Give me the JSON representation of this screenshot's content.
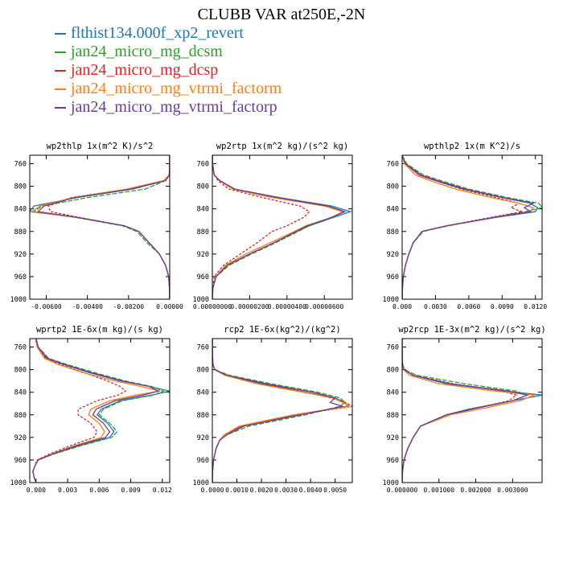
{
  "title": "CLUBB VAR at250E,-2N",
  "legend": [
    {
      "name": "flthist134.000f_xp2_revert",
      "color": "#1f77b4"
    },
    {
      "name": "jan24_micro_mg_dcsm",
      "color": "#2ca02c"
    },
    {
      "name": "jan24_micro_mg_dcsp",
      "color": "#d62728"
    },
    {
      "name": "jan24_micro_mg_vtrmi_factorm",
      "color": "#ff7f0e"
    },
    {
      "name": "jan24_micro_mg_vtrmi_factorp",
      "color": "#6a3d9a"
    }
  ],
  "chart_data": [
    {
      "type": "line",
      "title": "wp2thlp  1x(m^2 K)/s^2",
      "xlim": [
        -0.0068,
        0.0
      ],
      "ylim": [
        1000,
        745
      ],
      "xticks": [
        -0.006,
        -0.004,
        -0.002,
        0.0
      ],
      "xtick_labels": [
        "-0.00600",
        "-0.00400",
        "-0.00200",
        "0.00000"
      ],
      "yticks": [
        760,
        800,
        840,
        880,
        920,
        960,
        1000
      ],
      "ytick_labels": [
        "760",
        "800",
        "840",
        "880",
        "920",
        "960",
        "1000"
      ],
      "y": [
        745,
        760,
        780,
        790,
        805,
        820,
        835,
        845,
        855,
        870,
        880,
        900,
        920,
        940,
        960,
        980,
        1000
      ],
      "series": [
        {
          "name": "flthist134.000f_xp2_revert",
          "values": [
            0,
            0,
            -2e-05,
            -0.0002,
            -0.0018,
            -0.0045,
            -0.0066,
            -0.0068,
            -0.0045,
            -0.0022,
            -0.0015,
            -0.001,
            -0.0005,
            -0.0002,
            -5e-05,
            -1e-05,
            0
          ]
        },
        {
          "name": "jan24_micro_mg_dcsm",
          "values": [
            0,
            0,
            -1e-05,
            -0.0002,
            -0.0012,
            -0.004,
            -0.0062,
            -0.0066,
            -0.0046,
            -0.0023,
            -0.0016,
            -0.0011,
            -0.0005,
            -0.0002,
            -5e-05,
            -1e-05,
            0
          ]
        },
        {
          "name": "jan24_micro_mg_dcsp",
          "values": [
            0,
            0,
            -2e-05,
            -0.0003,
            -0.002,
            -0.0048,
            -0.0059,
            -0.0058,
            -0.0044,
            -0.0022,
            -0.0015,
            -0.001,
            -0.0005,
            -0.0002,
            -5e-05,
            -1e-05,
            0
          ]
        },
        {
          "name": "jan24_micro_mg_vtrmi_factorm",
          "values": [
            0,
            0,
            -2e-05,
            -0.0003,
            -0.0021,
            -0.0047,
            -0.0063,
            -0.0067,
            -0.0045,
            -0.0022,
            -0.0015,
            -0.001,
            -0.0005,
            -0.0002,
            -5e-05,
            -1e-05,
            0
          ]
        },
        {
          "name": "jan24_micro_mg_vtrmi_factorp",
          "values": [
            0,
            0,
            -2e-05,
            -0.0002,
            -0.0019,
            -0.0046,
            -0.0061,
            -0.0064,
            -0.0045,
            -0.0022,
            -0.0015,
            -0.001,
            -0.0005,
            -0.0002,
            -5e-05,
            -1e-05,
            0
          ]
        }
      ]
    },
    {
      "type": "line",
      "title": "wp2rtp  1x(m^2 kg)/(s^2 kg)",
      "xlim": [
        0.0,
        7.5e-06
      ],
      "ylim": [
        1000,
        745
      ],
      "xticks": [
        0.0,
        2e-06,
        4e-06,
        6e-06
      ],
      "xtick_labels": [
        "0.00000000",
        "0.00000200",
        "0.00000400",
        "0.00000600"
      ],
      "yticks": [
        760,
        800,
        840,
        880,
        920,
        960,
        1000
      ],
      "ytick_labels": [
        "760",
        "800",
        "840",
        "880",
        "920",
        "960",
        "1000"
      ],
      "y": [
        745,
        760,
        780,
        790,
        805,
        820,
        835,
        845,
        855,
        870,
        880,
        900,
        920,
        940,
        960,
        980,
        1000
      ],
      "series": [
        {
          "name": "flthist134.000f_xp2_revert",
          "values": [
            0,
            1e-08,
            1e-07,
            4e-07,
            1.2e-06,
            3.6e-06,
            6.4e-06,
            7.4e-06,
            6.5e-06,
            5.2e-06,
            4.5e-06,
            3.3e-06,
            2e-06,
            8e-07,
            2e-07,
            3e-08,
            0
          ]
        },
        {
          "name": "jan24_micro_mg_dcsm",
          "values": [
            0,
            1e-08,
            1e-07,
            4e-07,
            1.2e-06,
            3.4e-06,
            6.1e-06,
            7e-06,
            6.4e-06,
            5.2e-06,
            4.6e-06,
            3.4e-06,
            2.1e-06,
            9e-07,
            2e-07,
            3e-08,
            0
          ]
        },
        {
          "name": "jan24_micro_mg_dcsp",
          "values": [
            0,
            1e-08,
            1e-07,
            3e-07,
            9e-07,
            2.7e-06,
            4.7e-06,
            5.2e-06,
            4.9e-06,
            4e-06,
            3.2e-06,
            2.4e-06,
            1.5e-06,
            6e-07,
            1e-07,
            2e-08,
            0
          ]
        },
        {
          "name": "jan24_micro_mg_vtrmi_factorm",
          "values": [
            0,
            1e-08,
            1e-07,
            4e-07,
            1.1e-06,
            3.2e-06,
            6e-06,
            7e-06,
            6.4e-06,
            5e-06,
            4.4e-06,
            3.1e-06,
            1.8e-06,
            7e-07,
            2e-07,
            3e-08,
            0
          ]
        },
        {
          "name": "jan24_micro_mg_vtrmi_factorp",
          "values": [
            0,
            1e-08,
            1e-07,
            4e-07,
            1.2e-06,
            3.5e-06,
            6.2e-06,
            7.1e-06,
            6.4e-06,
            5.1e-06,
            4.5e-06,
            3.3e-06,
            2e-06,
            8e-07,
            2e-07,
            3e-08,
            0
          ]
        }
      ]
    },
    {
      "type": "line",
      "title": "wpthlp2  1x(m K^2)/s",
      "xlim": [
        0.0,
        0.0126
      ],
      "ylim": [
        1000,
        745
      ],
      "xticks": [
        0.0,
        0.003,
        0.006,
        0.009,
        0.012
      ],
      "xtick_labels": [
        "0.000",
        "0.0030",
        "0.0060",
        "0.0090",
        "0.0120"
      ],
      "yticks": [
        760,
        800,
        840,
        880,
        920,
        960,
        1000
      ],
      "ytick_labels": [
        "760",
        "800",
        "840",
        "880",
        "920",
        "960",
        "1000"
      ],
      "y": [
        745,
        760,
        780,
        790,
        805,
        820,
        830,
        838,
        845,
        855,
        870,
        880,
        900,
        920,
        940,
        960,
        980,
        1000
      ],
      "series": [
        {
          "name": "flthist134.000f_xp2_revert",
          "values": [
            0,
            0.0003,
            0.0015,
            0.003,
            0.0055,
            0.009,
            0.0115,
            0.0122,
            0.012,
            0.0085,
            0.004,
            0.0018,
            0.001,
            0.0006,
            0.0003,
            0.0001,
            3e-05,
            0
          ]
        },
        {
          "name": "jan24_micro_mg_dcsm",
          "values": [
            0,
            0.0004,
            0.0019,
            0.0035,
            0.006,
            0.0095,
            0.0123,
            0.0126,
            0.011,
            0.0082,
            0.0042,
            0.0019,
            0.001,
            0.0006,
            0.0003,
            0.0001,
            3e-05,
            0
          ]
        },
        {
          "name": "jan24_micro_mg_dcsp",
          "values": [
            0,
            0.0003,
            0.0015,
            0.003,
            0.0053,
            0.0085,
            0.0105,
            0.0098,
            0.0108,
            0.008,
            0.004,
            0.0018,
            0.001,
            0.0006,
            0.0003,
            0.0001,
            3e-05,
            0
          ]
        },
        {
          "name": "jan24_micro_mg_vtrmi_factorm",
          "values": [
            0,
            0.0002,
            0.0012,
            0.0025,
            0.0048,
            0.008,
            0.0105,
            0.0118,
            0.0115,
            0.0084,
            0.0041,
            0.0018,
            0.001,
            0.0006,
            0.0003,
            0.0001,
            3e-05,
            0
          ]
        },
        {
          "name": "jan24_micro_mg_vtrmi_factorp",
          "values": [
            0,
            0.0003,
            0.0017,
            0.0032,
            0.0057,
            0.0091,
            0.0118,
            0.011,
            0.0116,
            0.0083,
            0.004,
            0.0018,
            0.001,
            0.0006,
            0.0003,
            0.0001,
            3e-05,
            0
          ]
        }
      ]
    },
    {
      "type": "line",
      "title": "wprtp2  1E-6x(m kg)/(s kg)",
      "xlim": [
        -0.0006,
        0.0127
      ],
      "ylim": [
        1000,
        745
      ],
      "xticks": [
        0.0,
        0.003,
        0.006,
        0.009,
        0.012
      ],
      "xtick_labels": [
        "0.000",
        "0.003",
        "0.006",
        "0.009",
        "0.012"
      ],
      "yticks": [
        760,
        800,
        840,
        880,
        920,
        960,
        1000
      ],
      "ytick_labels": [
        "760",
        "800",
        "840",
        "880",
        "920",
        "960",
        "1000"
      ],
      "y": [
        745,
        760,
        780,
        790,
        805,
        820,
        830,
        838,
        845,
        855,
        870,
        880,
        895,
        910,
        920,
        935,
        950,
        960,
        970,
        980,
        990,
        1000
      ],
      "series": [
        {
          "name": "flthist134.000f_xp2_revert",
          "values": [
            0,
            0.0002,
            0.001,
            0.0025,
            0.005,
            0.008,
            0.0108,
            0.0127,
            0.011,
            0.008,
            0.0062,
            0.0058,
            0.0068,
            0.0074,
            0.007,
            0.004,
            0.0015,
            0.0002,
            -0.0001,
            -0.0003,
            -0.0002,
            0
          ]
        },
        {
          "name": "jan24_micro_mg_dcsm",
          "values": [
            0,
            0.0002,
            0.0012,
            0.0028,
            0.0055,
            0.0085,
            0.011,
            0.0121,
            0.0112,
            0.0082,
            0.0064,
            0.006,
            0.007,
            0.0077,
            0.0072,
            0.0042,
            0.0016,
            0.0002,
            -0.0001,
            -0.0003,
            -0.0002,
            0
          ]
        },
        {
          "name": "jan24_micro_mg_dcsp",
          "values": [
            0,
            0.0001,
            0.0009,
            0.0022,
            0.0045,
            0.0068,
            0.008,
            0.0085,
            0.0078,
            0.0058,
            0.004,
            0.004,
            0.0052,
            0.0058,
            0.0055,
            0.0032,
            0.0012,
            0.0001,
            -0.0001,
            -0.0003,
            -0.0002,
            0
          ]
        },
        {
          "name": "jan24_micro_mg_vtrmi_factorm",
          "values": [
            0,
            0.0001,
            0.0008,
            0.002,
            0.0044,
            0.0075,
            0.01,
            0.0118,
            0.0095,
            0.007,
            0.0052,
            0.005,
            0.006,
            0.0065,
            0.0062,
            0.0036,
            0.0014,
            0.0002,
            -0.0001,
            -0.0003,
            -0.0002,
            0
          ]
        },
        {
          "name": "jan24_micro_mg_vtrmi_factorp",
          "values": [
            0,
            0.0002,
            0.0011,
            0.0026,
            0.0052,
            0.0082,
            0.0108,
            0.0116,
            0.0102,
            0.0075,
            0.0057,
            0.0054,
            0.0064,
            0.007,
            0.0066,
            0.0038,
            0.0015,
            0.0002,
            -0.0001,
            -0.0003,
            -0.0002,
            0
          ]
        }
      ]
    },
    {
      "type": "line",
      "title": "rcp2  1E-6x(kg^2)/(kg^2)",
      "xlim": [
        0.0,
        0.0057
      ],
      "ylim": [
        1000,
        745
      ],
      "xticks": [
        0.0,
        0.001,
        0.002,
        0.003,
        0.004,
        0.005
      ],
      "xtick_labels": [
        "0.0000",
        "0.0010",
        "0.0020",
        "0.0030",
        "0.0040",
        "0.0050"
      ],
      "yticks": [
        760,
        800,
        840,
        880,
        920,
        960,
        1000
      ],
      "ytick_labels": [
        "760",
        "800",
        "840",
        "880",
        "920",
        "960",
        "1000"
      ],
      "y": [
        745,
        760,
        790,
        800,
        810,
        825,
        840,
        850,
        858,
        865,
        880,
        900,
        915,
        925,
        940,
        960,
        980,
        1000
      ],
      "series": [
        {
          "name": "flthist134.000f_xp2_revert",
          "values": [
            0,
            0,
            2e-05,
            0.0001,
            0.0006,
            0.002,
            0.0038,
            0.005,
            0.0054,
            0.0055,
            0.0035,
            0.0012,
            0.0005,
            0.0003,
            0.00015,
            5e-05,
            1e-05,
            0
          ]
        },
        {
          "name": "jan24_micro_mg_dcsm",
          "values": [
            0,
            0,
            2e-05,
            0.0001,
            0.0007,
            0.0024,
            0.0043,
            0.0052,
            0.0054,
            0.0052,
            0.0038,
            0.0015,
            0.0006,
            0.0003,
            0.00015,
            5e-05,
            1e-05,
            0
          ]
        },
        {
          "name": "jan24_micro_mg_dcsp",
          "values": [
            0,
            0,
            2e-05,
            0.0001,
            0.0006,
            0.0021,
            0.0038,
            0.0048,
            0.0054,
            0.0057,
            0.0034,
            0.0012,
            0.0005,
            0.0003,
            0.00015,
            5e-05,
            1e-05,
            0
          ]
        },
        {
          "name": "jan24_micro_mg_vtrmi_factorm",
          "values": [
            0,
            0,
            2e-05,
            0.0001,
            0.0005,
            0.0018,
            0.0037,
            0.0049,
            0.0053,
            0.0056,
            0.0033,
            0.0011,
            0.0005,
            0.0003,
            0.00015,
            5e-05,
            1e-05,
            0
          ]
        },
        {
          "name": "jan24_micro_mg_vtrmi_factorp",
          "values": [
            0,
            0,
            2e-05,
            0.0001,
            0.0006,
            0.0022,
            0.0041,
            0.005,
            0.0048,
            0.0053,
            0.0036,
            0.0013,
            0.0006,
            0.0003,
            0.00015,
            5e-05,
            1e-05,
            0
          ]
        }
      ]
    },
    {
      "type": "line",
      "title": "wp2rcp  1E-3x(m^2 kg)/(s^2 kg)",
      "xlim": [
        0.0,
        0.0038
      ],
      "ylim": [
        1000,
        745
      ],
      "xticks": [
        0.0,
        0.001,
        0.002,
        0.003
      ],
      "xtick_labels": [
        "0.000000",
        "0.001000",
        "0.002000",
        "0.003000"
      ],
      "yticks": [
        760,
        800,
        840,
        880,
        920,
        960,
        1000
      ],
      "ytick_labels": [
        "760",
        "800",
        "840",
        "880",
        "920",
        "960",
        "1000"
      ],
      "y": [
        745,
        760,
        790,
        800,
        810,
        825,
        838,
        845,
        855,
        870,
        880,
        900,
        920,
        940,
        960,
        980,
        1000
      ],
      "series": [
        {
          "name": "flthist134.000f_xp2_revert",
          "values": [
            0,
            0,
            1e-05,
            5e-05,
            0.0003,
            0.0012,
            0.0028,
            0.0038,
            0.003,
            0.0018,
            0.0012,
            0.0005,
            0.0003,
            0.00015,
            5e-05,
            1e-05,
            0
          ]
        },
        {
          "name": "jan24_micro_mg_dcsm",
          "values": [
            0,
            0,
            1e-05,
            6e-05,
            0.0004,
            0.0017,
            0.0031,
            0.0034,
            0.003,
            0.0019,
            0.0013,
            0.0005,
            0.0003,
            0.00015,
            5e-05,
            1e-05,
            0
          ]
        },
        {
          "name": "jan24_micro_mg_dcsp",
          "values": [
            0,
            0,
            1e-05,
            5e-05,
            0.0003,
            0.0014,
            0.0027,
            0.0031,
            0.0029,
            0.0019,
            0.0013,
            0.0005,
            0.0003,
            0.00015,
            5e-05,
            1e-05,
            0
          ]
        },
        {
          "name": "jan24_micro_mg_vtrmi_factorm",
          "values": [
            0,
            0,
            1e-05,
            4e-05,
            0.0002,
            0.001,
            0.0025,
            0.0036,
            0.0032,
            0.0021,
            0.0013,
            0.0005,
            0.0003,
            0.00015,
            5e-05,
            1e-05,
            0
          ]
        },
        {
          "name": "jan24_micro_mg_vtrmi_factorp",
          "values": [
            0,
            0,
            1e-05,
            5e-05,
            0.0003,
            0.0013,
            0.0029,
            0.0034,
            0.003,
            0.0019,
            0.0012,
            0.0005,
            0.0003,
            0.00015,
            5e-05,
            1e-05,
            0
          ]
        }
      ]
    }
  ]
}
